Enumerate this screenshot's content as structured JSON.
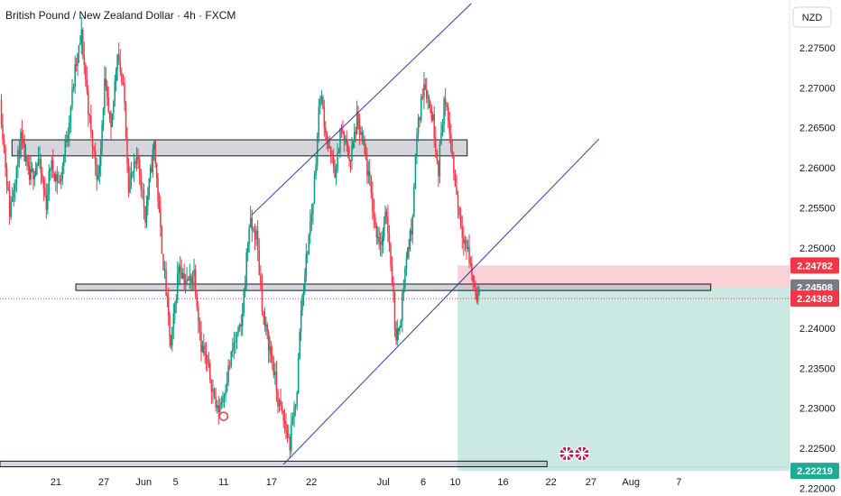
{
  "header": {
    "title": "British Pound / New Zealand Dollar · 4h · FXCM"
  },
  "currency_label": "NZD",
  "chart_data": {
    "type": "candlestick",
    "symbol": "GBPNZD",
    "timeframe": "4h",
    "y_ticks": [
      "2.27500",
      "2.27000",
      "2.26500",
      "2.26000",
      "2.25500",
      "2.25000",
      "2.24000",
      "2.23500",
      "2.23000",
      "2.22500",
      "2.22000"
    ],
    "y_range": [
      2.2195,
      2.2805
    ],
    "x_ticks": [
      {
        "label": "21",
        "day": 21
      },
      {
        "label": "27",
        "day": 27
      },
      {
        "label": "Jun",
        "day": 32
      },
      {
        "label": "5",
        "day": 36
      },
      {
        "label": "11",
        "day": 42
      },
      {
        "label": "17",
        "day": 48
      },
      {
        "label": "22",
        "day": 53
      },
      {
        "label": "Jul",
        "day": 62
      },
      {
        "label": "6",
        "day": 67
      },
      {
        "label": "10",
        "day": 71
      },
      {
        "label": "16",
        "day": 77
      },
      {
        "label": "22",
        "day": 83
      },
      {
        "label": "27",
        "day": 88
      },
      {
        "label": "Aug",
        "day": 93
      },
      {
        "label": "7",
        "day": 99
      }
    ],
    "price_badges": [
      {
        "label": "2.24782",
        "value": 2.24782,
        "color": "#f23645"
      },
      {
        "label": "2.24508",
        "value": 2.24508,
        "color": "#787b86"
      },
      {
        "label": "2.24369",
        "value": 2.24369,
        "color": "#f23645"
      },
      {
        "label": "2.22219",
        "value": 2.22219,
        "color": "#22ab94"
      }
    ],
    "zones": [
      {
        "name": "upper",
        "day_start": 15.5,
        "day_end": 72.5,
        "y_top": 2.2635,
        "y_bottom": 2.2615
      },
      {
        "name": "middle",
        "day_start": 23.5,
        "day_end": 103,
        "y_top": 2.2455,
        "y_bottom": 2.2447
      },
      {
        "name": "lower",
        "day_start": 14,
        "day_end": 82.5,
        "y_top": 2.2234,
        "y_bottom": 2.2227
      }
    ],
    "trend_lines": [
      {
        "name": "channel-upper",
        "from": {
          "day": 45.5,
          "price": 2.2541
        },
        "to": {
          "day": 73,
          "price": 2.2805
        }
      },
      {
        "name": "channel-lower",
        "from": {
          "day": 49.5,
          "price": 2.223
        },
        "to": {
          "day": 89,
          "price": 2.2636
        }
      }
    ],
    "position": {
      "entry": 2.24508,
      "stop": 2.24782,
      "target": 2.22219,
      "day_start": 71.3,
      "day_end": 103
    },
    "close_line": 2.24369,
    "circle_marker": {
      "day": 42,
      "price": 2.229
    },
    "colors": {
      "up": "#089981",
      "down": "#f23645",
      "trend": "#2d3aa8",
      "profit": "#b2e0d5",
      "loss": "#f8c3c7"
    },
    "path": [
      [
        14.0,
        2.2685
      ],
      [
        15.2,
        2.2545
      ],
      [
        16.6,
        2.2635
      ],
      [
        17.7,
        2.2585
      ],
      [
        18.8,
        2.261
      ],
      [
        19.8,
        2.2555
      ],
      [
        20.3,
        2.2605
      ],
      [
        21.5,
        2.258
      ],
      [
        22.5,
        2.265
      ],
      [
        23.4,
        2.272
      ],
      [
        24.2,
        2.2765
      ],
      [
        25.4,
        2.264
      ],
      [
        26.3,
        2.2585
      ],
      [
        27.1,
        2.2705
      ],
      [
        27.9,
        2.264
      ],
      [
        28.7,
        2.275
      ],
      [
        29.6,
        2.268
      ],
      [
        30.1,
        2.258
      ],
      [
        31.3,
        2.261
      ],
      [
        32.2,
        2.254
      ],
      [
        33.3,
        2.263
      ],
      [
        34.1,
        2.252
      ],
      [
        34.8,
        2.2445
      ],
      [
        35.4,
        2.2375
      ],
      [
        36.4,
        2.248
      ],
      [
        37.4,
        2.2455
      ],
      [
        38.3,
        2.247
      ],
      [
        39.2,
        2.238
      ],
      [
        40.3,
        2.234
      ],
      [
        41.2,
        2.2295
      ],
      [
        41.9,
        2.2315
      ],
      [
        43.3,
        2.238
      ],
      [
        44.2,
        2.24
      ],
      [
        45.2,
        2.253
      ],
      [
        46.1,
        2.2515
      ],
      [
        47.0,
        2.241
      ],
      [
        48.1,
        2.236
      ],
      [
        48.8,
        2.231
      ],
      [
        49.5,
        2.2285
      ],
      [
        50.3,
        2.2255
      ],
      [
        51.2,
        2.2325
      ],
      [
        51.7,
        2.2425
      ],
      [
        52.5,
        2.25
      ],
      [
        53.2,
        2.256
      ],
      [
        54.1,
        2.2695
      ],
      [
        55.1,
        2.2625
      ],
      [
        56.1,
        2.259
      ],
      [
        56.6,
        2.265
      ],
      [
        57.9,
        2.261
      ],
      [
        58.7,
        2.266
      ],
      [
        59.5,
        2.2625
      ],
      [
        60.3,
        2.258
      ],
      [
        61.0,
        2.2525
      ],
      [
        61.8,
        2.2505
      ],
      [
        62.4,
        2.2545
      ],
      [
        63.1,
        2.2465
      ],
      [
        63.6,
        2.238
      ],
      [
        64.2,
        2.242
      ],
      [
        64.9,
        2.249
      ],
      [
        65.5,
        2.252
      ],
      [
        66.2,
        2.264
      ],
      [
        67.1,
        2.271
      ],
      [
        68.2,
        2.266
      ],
      [
        68.9,
        2.26
      ],
      [
        69.6,
        2.2685
      ],
      [
        70.3,
        2.2645
      ],
      [
        71.0,
        2.258
      ],
      [
        71.7,
        2.253
      ],
      [
        72.6,
        2.2495
      ],
      [
        73.4,
        2.245
      ],
      [
        74.0,
        2.2437
      ]
    ]
  }
}
